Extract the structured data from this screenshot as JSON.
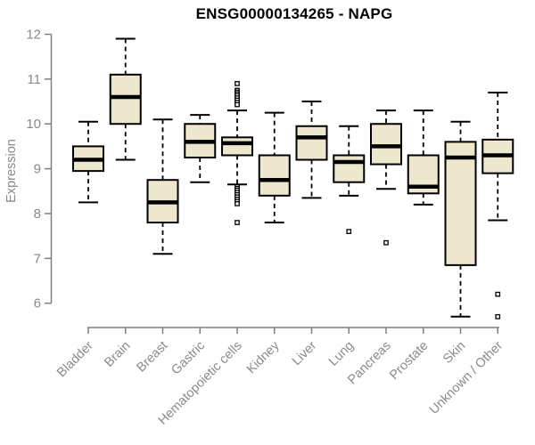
{
  "chart_data": {
    "type": "boxplot",
    "title": "ENSG00000134265 - NAPG",
    "ylabel": "Expression",
    "xlabel": "",
    "ylim": [
      6,
      12
    ],
    "yticks": [
      6,
      7,
      8,
      9,
      10,
      11,
      12
    ],
    "grid": false,
    "legend": "none",
    "categories": [
      "Bladder",
      "Brain",
      "Breast",
      "Gastric",
      "Hematopoietic cells",
      "Kidney",
      "Liver",
      "Lung",
      "Pancreas",
      "Prostate",
      "Skin",
      "Unknown / Other"
    ],
    "boxes": [
      {
        "category": "Bladder",
        "low": 8.25,
        "q1": 8.95,
        "median": 9.2,
        "q3": 9.5,
        "high": 10.05,
        "outliers": []
      },
      {
        "category": "Brain",
        "low": 9.2,
        "q1": 10.0,
        "median": 10.6,
        "q3": 11.1,
        "high": 11.9,
        "outliers": []
      },
      {
        "category": "Breast",
        "low": 7.1,
        "q1": 7.8,
        "median": 8.25,
        "q3": 8.75,
        "high": 10.1,
        "outliers": []
      },
      {
        "category": "Gastric",
        "low": 8.7,
        "q1": 9.25,
        "median": 9.6,
        "q3": 10.0,
        "high": 10.2,
        "outliers": []
      },
      {
        "category": "Hematopoietic cells",
        "low": 8.65,
        "q1": 9.3,
        "median": 9.57,
        "q3": 9.7,
        "high": 10.3,
        "outliers": [
          10.9,
          10.75,
          10.71,
          10.67,
          10.63,
          10.58,
          10.53,
          10.48,
          10.43,
          8.6,
          8.56,
          8.52,
          8.47,
          8.42,
          8.37,
          8.32,
          8.27,
          8.22,
          7.8
        ]
      },
      {
        "category": "Kidney",
        "low": 7.8,
        "q1": 8.4,
        "median": 8.75,
        "q3": 9.3,
        "high": 10.25,
        "outliers": []
      },
      {
        "category": "Liver",
        "low": 8.35,
        "q1": 9.2,
        "median": 9.7,
        "q3": 9.95,
        "high": 10.5,
        "outliers": []
      },
      {
        "category": "Lung",
        "low": 8.4,
        "q1": 8.7,
        "median": 9.15,
        "q3": 9.3,
        "high": 9.95,
        "outliers": [
          7.6
        ]
      },
      {
        "category": "Pancreas",
        "low": 8.55,
        "q1": 9.1,
        "median": 9.5,
        "q3": 10.0,
        "high": 10.3,
        "outliers": [
          7.35
        ]
      },
      {
        "category": "Prostate",
        "low": 8.2,
        "q1": 8.45,
        "median": 8.6,
        "q3": 9.3,
        "high": 10.3,
        "outliers": []
      },
      {
        "category": "Skin",
        "low": 5.7,
        "q1": 6.85,
        "median": 9.25,
        "q3": 9.6,
        "high": 10.05,
        "outliers": []
      },
      {
        "category": "Unknown / Other",
        "low": 7.85,
        "q1": 8.9,
        "median": 9.3,
        "q3": 9.65,
        "high": 10.7,
        "outliers": [
          6.2,
          5.7
        ]
      }
    ],
    "colors": {
      "box_fill": "#EDE7CD",
      "box_stroke": "#000000",
      "median": "#000000",
      "whisker": "#000000",
      "outlier_fill": "#FFFFFF",
      "axis": "#7F7F7F",
      "axis_text": "#8A8A8A",
      "title_text": "#000000",
      "background": "#FFFFFF"
    }
  }
}
